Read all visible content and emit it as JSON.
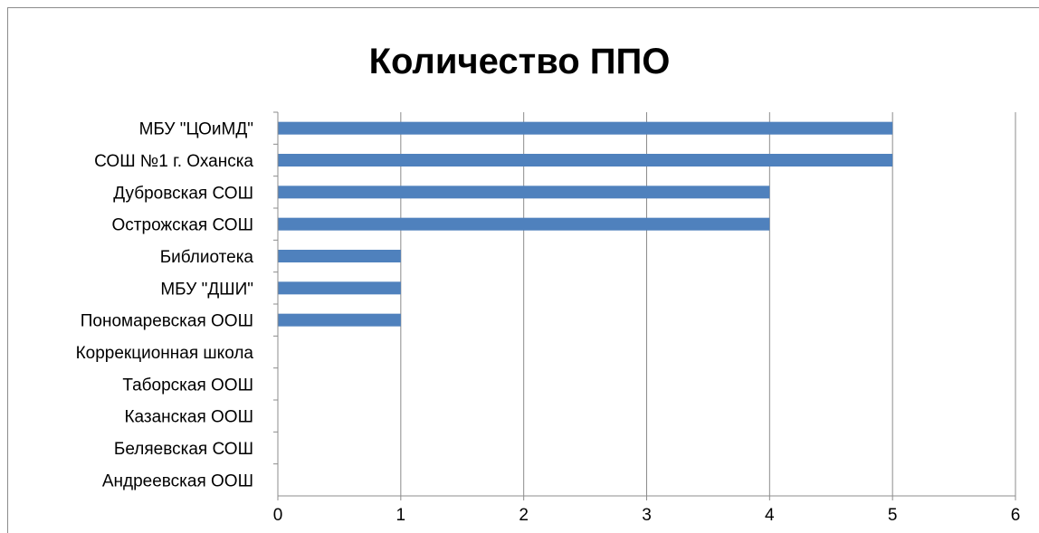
{
  "chart_data": {
    "type": "bar",
    "orientation": "horizontal",
    "title": "Количество ППО",
    "categories": [
      "МБУ \"ЦОиМД\"",
      "СОШ №1 г. Оханска",
      "Дубровская СОШ",
      "Острожская СОШ",
      "Библиотека",
      "МБУ \"ДШИ\"",
      "Пономаревская ООШ",
      "Коррекционная школа",
      "Таборская ООШ",
      "Казанская ООШ",
      "Беляевская СОШ",
      "Андреевская ООШ"
    ],
    "values": [
      5,
      5,
      4,
      4,
      1,
      1,
      1,
      0,
      0,
      0,
      0,
      0
    ],
    "xlim": [
      0,
      6
    ],
    "x_ticks": [
      "0",
      "1",
      "2",
      "3",
      "4",
      "5",
      "6"
    ],
    "xlabel": "",
    "ylabel": "",
    "grid": "vertical",
    "legend": "none",
    "colors": {
      "bar": "#4f81bd",
      "grid": "#8c8c8c",
      "axis": "#8c8c8c"
    }
  }
}
